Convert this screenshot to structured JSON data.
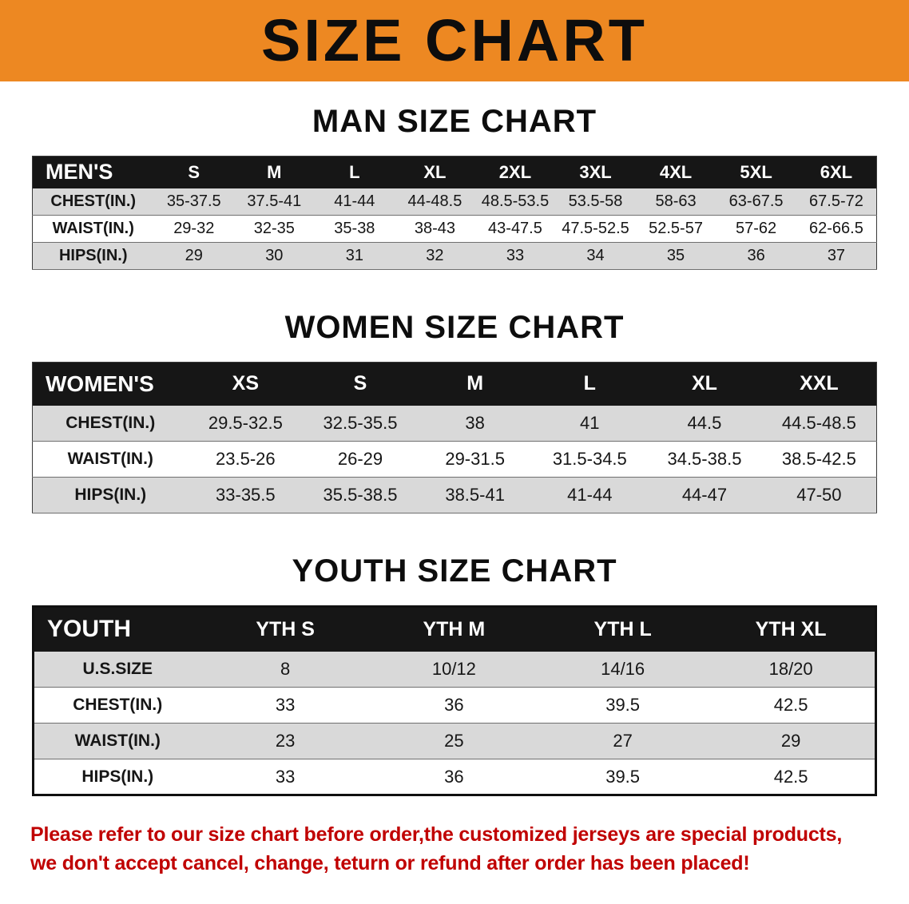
{
  "banner": {
    "title": "SIZE CHART"
  },
  "colors": {
    "banner_bg": "#ED8822",
    "table_header_bg": "#161616",
    "row_alt_bg": "#D9D9D9",
    "disclaimer_text": "#C00000"
  },
  "sections": [
    {
      "title": "MAN SIZE CHART",
      "table": {
        "header": [
          "MEN'S",
          "S",
          "M",
          "L",
          "XL",
          "2XL",
          "3XL",
          "4XL",
          "5XL",
          "6XL"
        ],
        "rows": [
          [
            "CHEST(IN.)",
            "35-37.5",
            "37.5-41",
            "41-44",
            "44-48.5",
            "48.5-53.5",
            "53.5-58",
            "58-63",
            "63-67.5",
            "67.5-72"
          ],
          [
            "WAIST(IN.)",
            "29-32",
            "32-35",
            "35-38",
            "38-43",
            "43-47.5",
            "47.5-52.5",
            "52.5-57",
            "57-62",
            "62-66.5"
          ],
          [
            "HIPS(IN.)",
            "29",
            "30",
            "31",
            "32",
            "33",
            "34",
            "35",
            "36",
            "37"
          ]
        ]
      }
    },
    {
      "title": "WOMEN SIZE CHART",
      "table": {
        "header": [
          "WOMEN'S",
          "XS",
          "S",
          "M",
          "L",
          "XL",
          "XXL"
        ],
        "rows": [
          [
            "CHEST(IN.)",
            "29.5-32.5",
            "32.5-35.5",
            "38",
            "41",
            "44.5",
            "44.5-48.5"
          ],
          [
            "WAIST(IN.)",
            "23.5-26",
            "26-29",
            "29-31.5",
            "31.5-34.5",
            "34.5-38.5",
            "38.5-42.5"
          ],
          [
            "HIPS(IN.)",
            "33-35.5",
            "35.5-38.5",
            "38.5-41",
            "41-44",
            "44-47",
            "47-50"
          ]
        ]
      }
    },
    {
      "title": "YOUTH SIZE CHART",
      "table": {
        "header": [
          "YOUTH",
          "YTH S",
          "YTH M",
          "YTH L",
          "YTH XL"
        ],
        "rows": [
          [
            "U.S.SIZE",
            "8",
            "10/12",
            "14/16",
            "18/20"
          ],
          [
            "CHEST(IN.)",
            "33",
            "36",
            "39.5",
            "42.5"
          ],
          [
            "WAIST(IN.)",
            "23",
            "25",
            "27",
            "29"
          ],
          [
            "HIPS(IN.)",
            "33",
            "36",
            "39.5",
            "42.5"
          ]
        ]
      }
    }
  ],
  "footer": {
    "lines": [
      "Please refer to our size chart before order,the customized jerseys are special products,",
      "we don't accept cancel, change, teturn or refund after order has been placed!"
    ]
  }
}
